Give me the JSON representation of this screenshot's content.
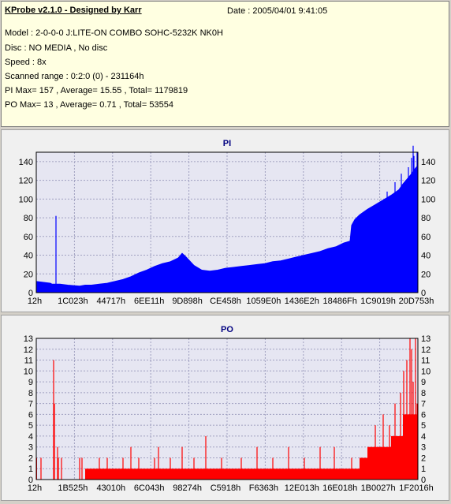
{
  "info": {
    "title": "KProbe v2.1.0 - Designed by Karr",
    "date": "Date : 2005/04/01 9:41:05",
    "lines": [
      "Model : 2-0-0-0 J:LITE-ON COMBO SOHC-5232K NK0H",
      "Disc : NO MEDIA , No disc",
      "Speed : 8x",
      "Scanned range : 0:2:0 (0) - 231164h",
      "PI Max= 157 , Average= 15.55 , Total= 1179819",
      "PO Max= 13 , Average= 0.71 , Total= 53554"
    ]
  },
  "colors": {
    "pi": "#0000ff",
    "po": "#ff0000",
    "plot_bg": "#e6e6f2",
    "grid": "#a0a0c0"
  },
  "chart_data": [
    {
      "type": "area",
      "title": "PI",
      "xlabel": "",
      "ylabel": "",
      "ylim": [
        0,
        150
      ],
      "yticks": [
        0,
        20,
        40,
        60,
        80,
        100,
        120,
        140
      ],
      "xlim": [
        0,
        231164
      ],
      "xticks": [
        "12h",
        "1C023h",
        "44717h",
        "6EE11h",
        "9D898h",
        "CE458h",
        "1059E0h",
        "1436E2h",
        "18486Fh",
        "1C9019h",
        "20D753h"
      ],
      "grid": true,
      "x": [
        0,
        18,
        20,
        30,
        40,
        55,
        62,
        70,
        80,
        90,
        95,
        100,
        110,
        120,
        130,
        140,
        150,
        160,
        170,
        180,
        185,
        190,
        200,
        210,
        220,
        230,
        240,
        250,
        260,
        270,
        280,
        290,
        300,
        310,
        320,
        330,
        340,
        350,
        360,
        370,
        380,
        390,
        398,
        400,
        404,
        410,
        420,
        430,
        440,
        450,
        460,
        465,
        470,
        475,
        480,
        484
      ],
      "values": [
        12,
        10,
        9,
        9,
        8,
        7,
        8,
        8,
        9,
        10,
        11,
        12,
        14,
        17,
        21,
        24,
        28,
        31,
        33,
        37,
        42,
        38,
        29,
        24,
        23,
        24,
        26,
        27,
        28,
        29,
        30,
        31,
        33,
        34,
        36,
        38,
        40,
        42,
        44,
        47,
        49,
        53,
        55,
        72,
        78,
        83,
        89,
        94,
        99,
        104,
        110,
        116,
        121,
        126,
        132,
        136
      ],
      "spikes": [
        [
          25,
          82
        ],
        [
          409,
          55
        ],
        [
          445,
          108
        ],
        [
          455,
          118
        ],
        [
          463,
          127
        ],
        [
          472,
          134
        ],
        [
          476,
          144
        ],
        [
          477,
          120
        ],
        [
          478,
          157
        ],
        [
          479,
          146
        ],
        [
          483,
          150
        ]
      ]
    },
    {
      "type": "bar",
      "title": "PO",
      "xlabel": "",
      "ylabel": "",
      "ylim": [
        0,
        13
      ],
      "yticks": [
        0,
        1,
        2,
        3,
        4,
        5,
        6,
        7,
        8,
        9,
        10,
        11,
        12,
        13
      ],
      "xlim": [
        0,
        231164
      ],
      "xticks": [
        "12h",
        "1B525h",
        "43010h",
        "6C043h",
        "98274h",
        "C5918h",
        "F6363h",
        "12E013h",
        "16E018h",
        "1B0027h",
        "1F2016h"
      ],
      "grid": true,
      "baseline": 1,
      "segments": [
        [
          0,
          1,
          2
        ],
        [
          62,
          410,
          1
        ],
        [
          410,
          420,
          2
        ],
        [
          420,
          435,
          3
        ],
        [
          435,
          450,
          3
        ],
        [
          450,
          465,
          4
        ],
        [
          465,
          484,
          6
        ]
      ],
      "spikes": [
        [
          6,
          2
        ],
        [
          22,
          11
        ],
        [
          23,
          7
        ],
        [
          27,
          3
        ],
        [
          28,
          2
        ],
        [
          32,
          2
        ],
        [
          55,
          2
        ],
        [
          58,
          2
        ],
        [
          80,
          2
        ],
        [
          90,
          2
        ],
        [
          110,
          2
        ],
        [
          120,
          3
        ],
        [
          130,
          2
        ],
        [
          150,
          2
        ],
        [
          155,
          3
        ],
        [
          170,
          2
        ],
        [
          185,
          3
        ],
        [
          200,
          2
        ],
        [
          215,
          4
        ],
        [
          235,
          2
        ],
        [
          260,
          2
        ],
        [
          280,
          3
        ],
        [
          300,
          2
        ],
        [
          320,
          3
        ],
        [
          340,
          2
        ],
        [
          360,
          3
        ],
        [
          378,
          3
        ],
        [
          400,
          2
        ],
        [
          430,
          5
        ],
        [
          440,
          6
        ],
        [
          448,
          5
        ],
        [
          455,
          7
        ],
        [
          462,
          8
        ],
        [
          466,
          10
        ],
        [
          470,
          11
        ],
        [
          474,
          13
        ],
        [
          476,
          12
        ],
        [
          478,
          9
        ],
        [
          481,
          13
        ],
        [
          483,
          7
        ]
      ]
    }
  ]
}
